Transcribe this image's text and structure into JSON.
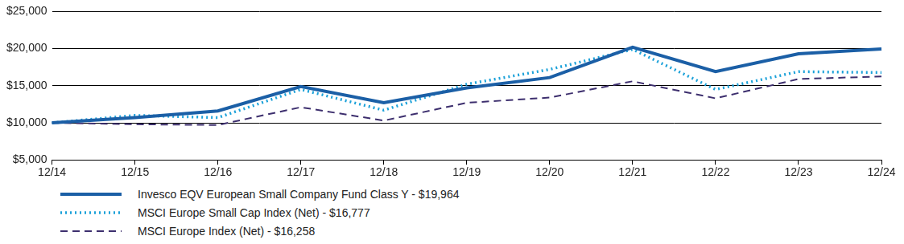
{
  "chart_data": {
    "type": "line",
    "categories": [
      "12/14",
      "12/15",
      "12/16",
      "12/17",
      "12/18",
      "12/19",
      "12/20",
      "12/21",
      "12/22",
      "12/23",
      "12/24"
    ],
    "series": [
      {
        "name": "Invesco EQV European Small Company Fund Class Y - $19,964",
        "color": "#1b5fa6",
        "line_style": "solid",
        "values": [
          10000,
          10700,
          11600,
          14900,
          12700,
          14700,
          16100,
          20200,
          16900,
          19300,
          19964
        ]
      },
      {
        "name": "MSCI Europe Small Cap Index (Net) - $16,777",
        "color": "#1ba1d9",
        "line_style": "dotted",
        "values": [
          10000,
          11000,
          10700,
          14500,
          11700,
          15200,
          17200,
          19900,
          14500,
          16900,
          16777
        ]
      },
      {
        "name": "MSCI Europe Index (Net) - $16,258",
        "color": "#3d2f6e",
        "line_style": "dashed",
        "values": [
          10000,
          9800,
          9700,
          12100,
          10300,
          12700,
          13400,
          15600,
          13300,
          15900,
          16258
        ]
      }
    ],
    "ylim": [
      5000,
      25000
    ],
    "yticks": [
      {
        "value": 5000,
        "label": "$5,000"
      },
      {
        "value": 10000,
        "label": "$10,000"
      },
      {
        "value": 15000,
        "label": "$15,000"
      },
      {
        "value": 20000,
        "label": "$20,000"
      },
      {
        "value": 25000,
        "label": "$25,000"
      }
    ],
    "grid": true,
    "legend": "bottom"
  }
}
